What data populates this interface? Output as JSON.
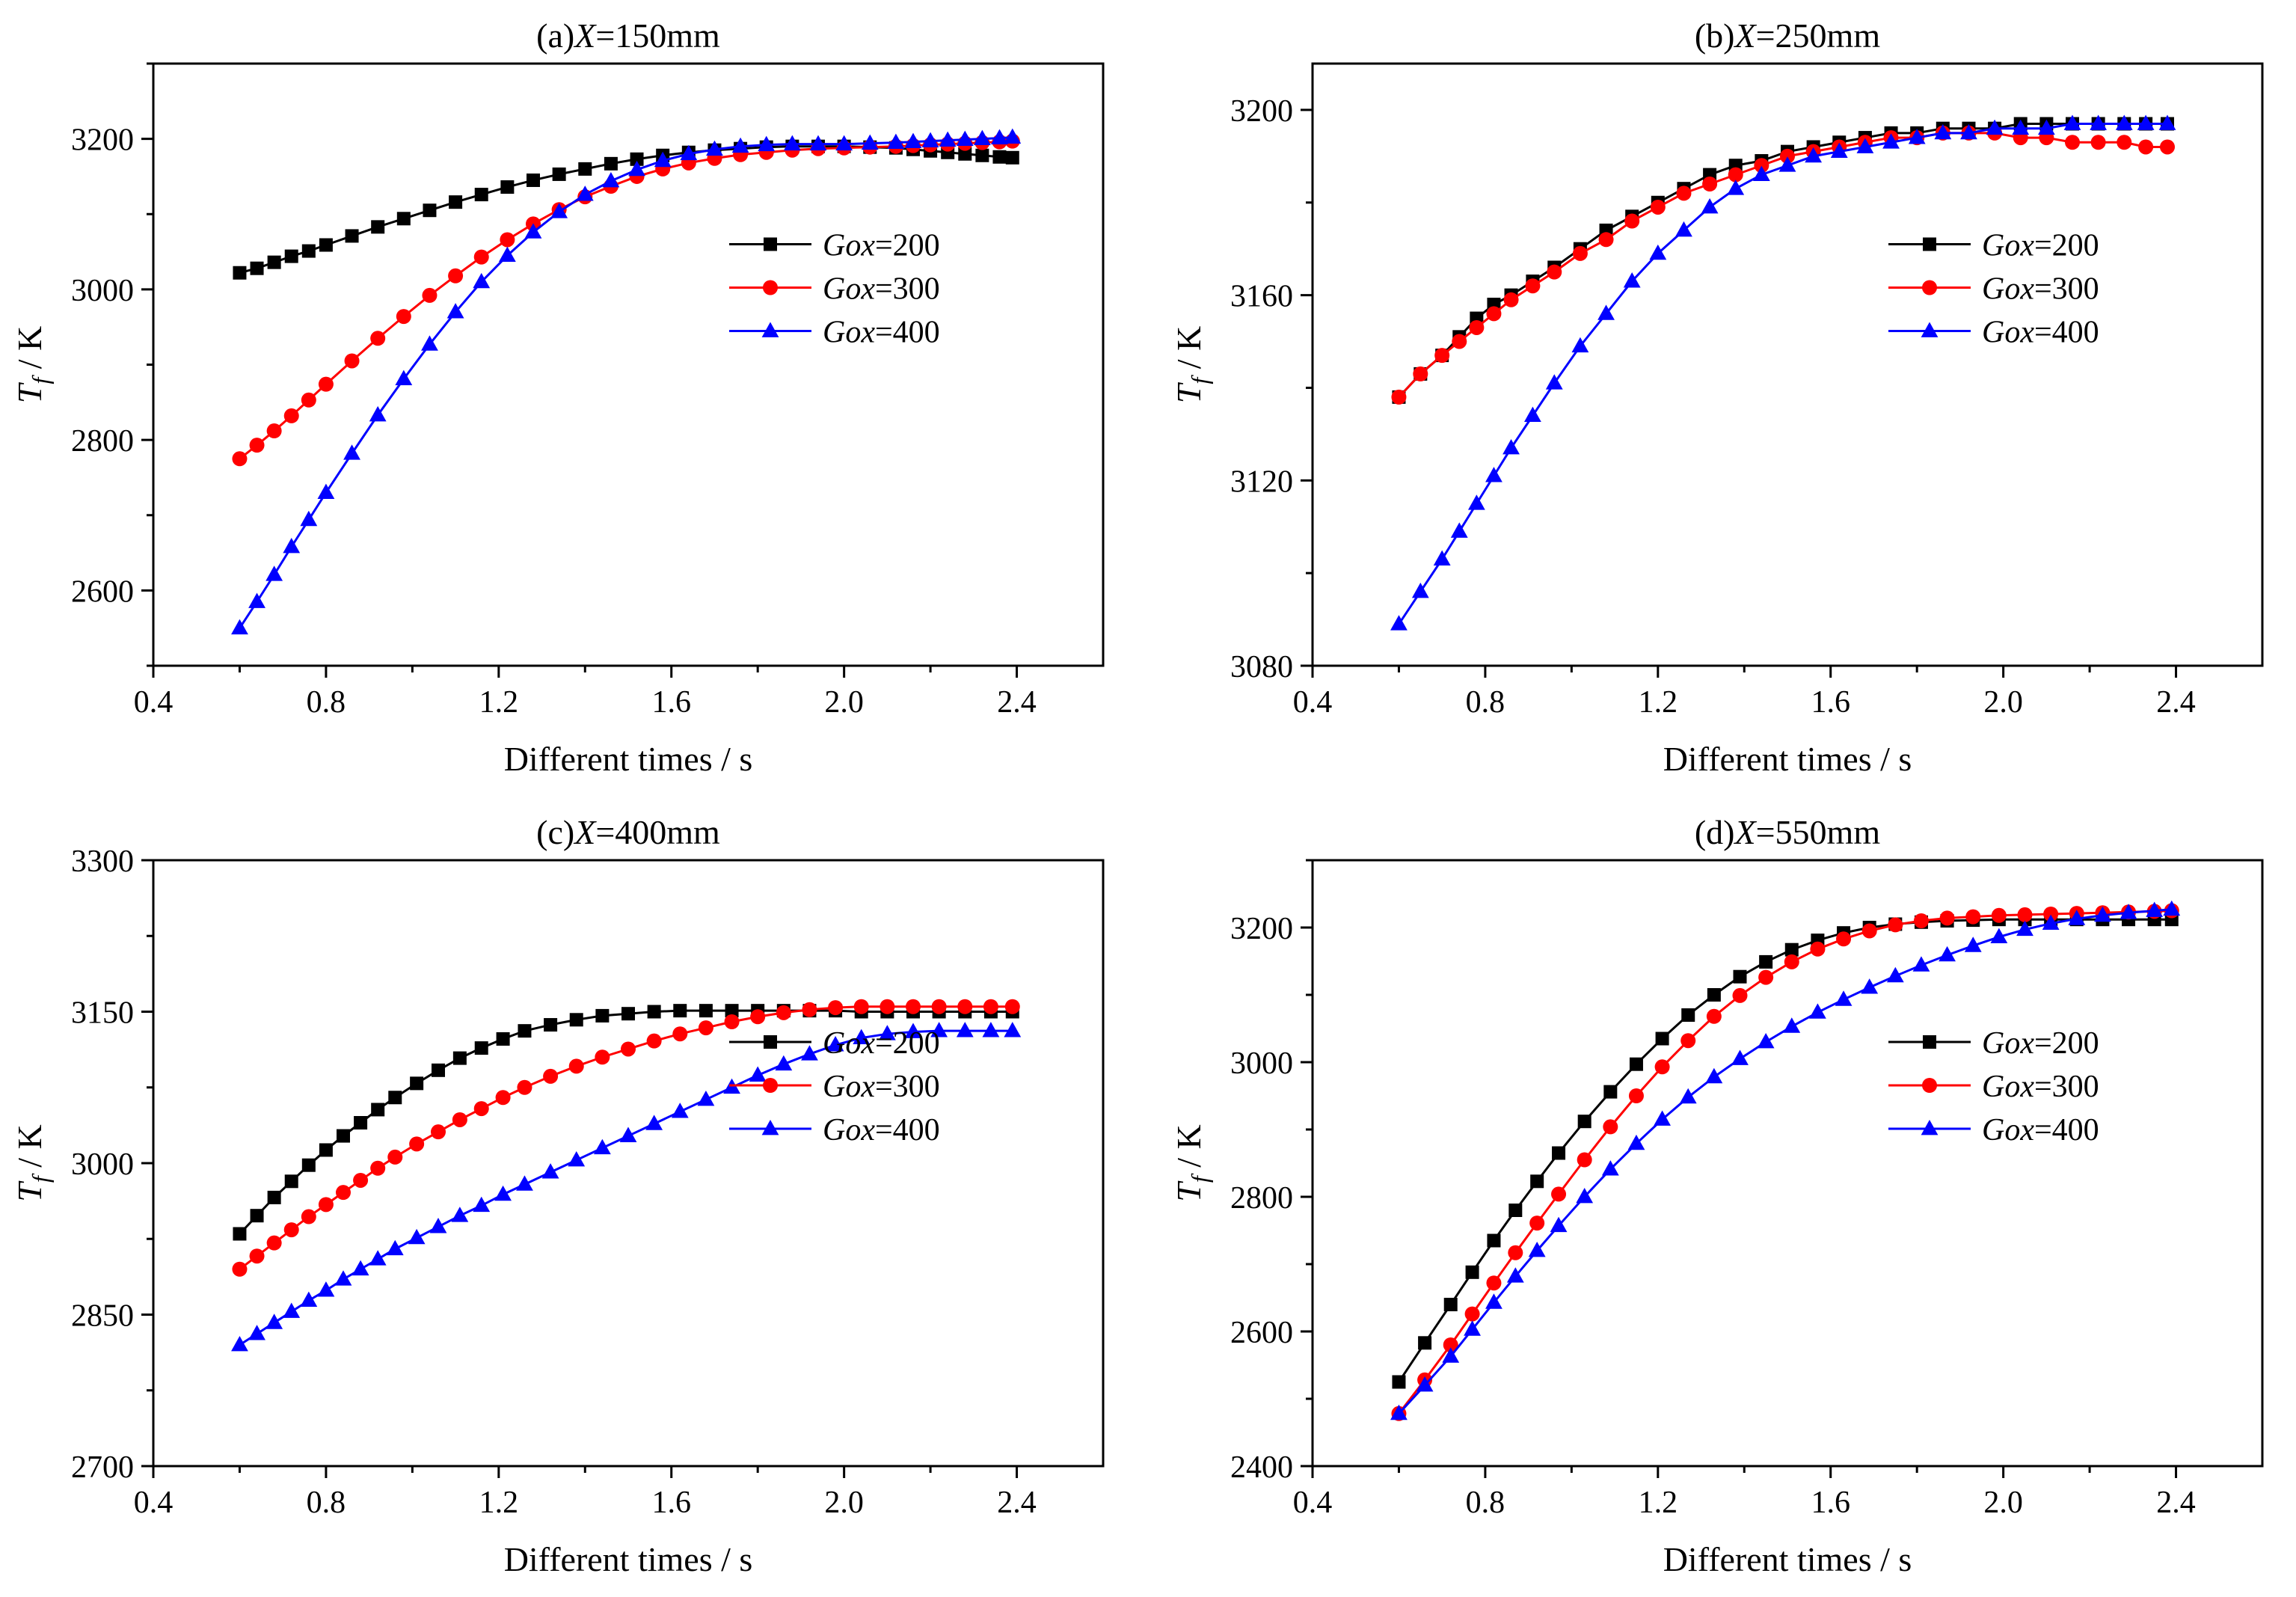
{
  "figure": {
    "colors": {
      "Gox=200": "#000000",
      "Gox=300": "#ff0000",
      "Gox=400": "#0000ff"
    },
    "markers": {
      "Gox=200": "square",
      "Gox=300": "circle",
      "Gox=400": "triangle"
    }
  },
  "chart_data": [
    {
      "type": "line",
      "title": {
        "prefix": "(a)",
        "var": "X",
        "suffix": "=150mm"
      },
      "xlabel": "Different times / s",
      "ylabel": {
        "var": "T",
        "sub": "f",
        "unit": " / K"
      },
      "xlim": [
        0.4,
        2.6
      ],
      "ylim": [
        2500,
        3300
      ],
      "xticks": [
        0.4,
        0.8,
        1.2,
        1.6,
        2.0,
        2.4
      ],
      "xtick_labels": [
        "0.4",
        "0.8",
        "1.2",
        "1.6",
        "2.0",
        "2.4"
      ],
      "yticks": [
        2600,
        2800,
        3000,
        3200
      ],
      "ytick_labels": [
        "2600",
        "2800",
        "3000",
        "3200"
      ],
      "legend_position": "center-right",
      "x": [
        0.6,
        0.64,
        0.68,
        0.72,
        0.76,
        0.8,
        0.86,
        0.92,
        0.98,
        1.04,
        1.1,
        1.16,
        1.22,
        1.28,
        1.34,
        1.4,
        1.46,
        1.52,
        1.58,
        1.64,
        1.7,
        1.76,
        1.82,
        1.88,
        1.94,
        2.0,
        2.06,
        2.12,
        2.16,
        2.2,
        2.24,
        2.28,
        2.32,
        2.36,
        2.39
      ],
      "series": [
        {
          "name": "Gox=200",
          "name_parts": {
            "var": "Gox",
            "suffix": "=200"
          },
          "values": [
            3022,
            3028,
            3036,
            3044,
            3051,
            3059,
            3071,
            3083,
            3094,
            3105,
            3116,
            3126,
            3136,
            3145,
            3153,
            3160,
            3167,
            3173,
            3178,
            3182,
            3185,
            3187,
            3189,
            3190,
            3190,
            3190,
            3189,
            3188,
            3186,
            3184,
            3182,
            3180,
            3178,
            3176,
            3175
          ]
        },
        {
          "name": "Gox=300",
          "name_parts": {
            "var": "Gox",
            "suffix": "=300"
          },
          "values": [
            2775,
            2793,
            2812,
            2832,
            2853,
            2874,
            2905,
            2935,
            2964,
            2992,
            3018,
            3043,
            3066,
            3087,
            3106,
            3123,
            3137,
            3150,
            3160,
            3168,
            3174,
            3179,
            3182,
            3185,
            3187,
            3188,
            3189,
            3190,
            3191,
            3192,
            3193,
            3194,
            3195,
            3196,
            3197
          ]
        },
        {
          "name": "Gox=400",
          "name_parts": {
            "var": "Gox",
            "suffix": "=400"
          },
          "values": [
            2550,
            2585,
            2621,
            2658,
            2694,
            2730,
            2782,
            2833,
            2881,
            2927,
            2970,
            3010,
            3045,
            3076,
            3103,
            3126,
            3144,
            3159,
            3171,
            3180,
            3186,
            3190,
            3192,
            3193,
            3193,
            3193,
            3194,
            3195,
            3196,
            3197,
            3198,
            3199,
            3200,
            3201,
            3202
          ]
        }
      ]
    },
    {
      "type": "line",
      "title": {
        "prefix": "(b)",
        "var": "X",
        "suffix": "=250mm"
      },
      "xlabel": "Different times / s",
      "ylabel": {
        "var": "T",
        "sub": "f",
        "unit": " / K"
      },
      "xlim": [
        0.4,
        2.6
      ],
      "ylim": [
        3080,
        3210
      ],
      "xticks": [
        0.4,
        0.8,
        1.2,
        1.6,
        2.0,
        2.4
      ],
      "xtick_labels": [
        "0.4",
        "0.8",
        "1.2",
        "1.6",
        "2.0",
        "2.4"
      ],
      "yticks": [
        3080,
        3120,
        3160,
        3200
      ],
      "ytick_labels": [
        "3080",
        "3120",
        "3160",
        "3200"
      ],
      "legend_position": "center-right",
      "x": [
        0.6,
        0.65,
        0.7,
        0.74,
        0.78,
        0.82,
        0.86,
        0.91,
        0.96,
        1.02,
        1.08,
        1.14,
        1.2,
        1.26,
        1.32,
        1.38,
        1.44,
        1.5,
        1.56,
        1.62,
        1.68,
        1.74,
        1.8,
        1.86,
        1.92,
        1.98,
        2.04,
        2.1,
        2.16,
        2.22,
        2.28,
        2.33,
        2.38
      ],
      "series": [
        {
          "name": "Gox=200",
          "name_parts": {
            "var": "Gox",
            "suffix": "=200"
          },
          "values": [
            3138,
            3143,
            3147,
            3151,
            3155,
            3158,
            3160,
            3163,
            3166,
            3170,
            3174,
            3177,
            3180,
            3183,
            3186,
            3188,
            3189,
            3191,
            3192,
            3193,
            3194,
            3195,
            3195,
            3196,
            3196,
            3196,
            3197,
            3197,
            3197,
            3197,
            3197,
            3197,
            3197
          ]
        },
        {
          "name": "Gox=300",
          "name_parts": {
            "var": "Gox",
            "suffix": "=300"
          },
          "values": [
            3138,
            3143,
            3147,
            3150,
            3153,
            3156,
            3159,
            3162,
            3165,
            3169,
            3172,
            3176,
            3179,
            3182,
            3184,
            3186,
            3188,
            3190,
            3191,
            3192,
            3193,
            3194,
            3194,
            3195,
            3195,
            3195,
            3194,
            3194,
            3193,
            3193,
            3193,
            3192,
            3192
          ]
        },
        {
          "name": "Gox=400",
          "name_parts": {
            "var": "Gox",
            "suffix": "=400"
          },
          "values": [
            3089,
            3096,
            3103,
            3109,
            3115,
            3121,
            3127,
            3134,
            3141,
            3149,
            3156,
            3163,
            3169,
            3174,
            3179,
            3183,
            3186,
            3188,
            3190,
            3191,
            3192,
            3193,
            3194,
            3195,
            3195,
            3196,
            3196,
            3196,
            3197,
            3197,
            3197,
            3197,
            3197
          ]
        }
      ]
    },
    {
      "type": "line",
      "title": {
        "prefix": "(c)",
        "var": "X",
        "suffix": "=400mm"
      },
      "xlabel": "Different times / s",
      "ylabel": {
        "var": "T",
        "sub": "f",
        "unit": " / K"
      },
      "xlim": [
        0.4,
        2.6
      ],
      "ylim": [
        2700,
        3300
      ],
      "xticks": [
        0.4,
        0.8,
        1.2,
        1.6,
        2.0,
        2.4
      ],
      "xtick_labels": [
        "0.4",
        "0.8",
        "1.2",
        "1.6",
        "2.0",
        "2.4"
      ],
      "yticks": [
        2700,
        2850,
        3000,
        3150,
        3300
      ],
      "ytick_labels": [
        "2700",
        "2850",
        "3000",
        "3150",
        "3300"
      ],
      "legend_position": "center-right",
      "x": [
        0.6,
        0.64,
        0.68,
        0.72,
        0.76,
        0.8,
        0.84,
        0.88,
        0.92,
        0.96,
        1.01,
        1.06,
        1.11,
        1.16,
        1.21,
        1.26,
        1.32,
        1.38,
        1.44,
        1.5,
        1.56,
        1.62,
        1.68,
        1.74,
        1.8,
        1.86,
        1.92,
        1.98,
        2.04,
        2.1,
        2.16,
        2.22,
        2.28,
        2.34,
        2.39
      ],
      "series": [
        {
          "name": "Gox=200",
          "name_parts": {
            "var": "Gox",
            "suffix": "=200"
          },
          "values": [
            2930,
            2948,
            2966,
            2982,
            2998,
            3013,
            3027,
            3040,
            3053,
            3065,
            3079,
            3092,
            3104,
            3114,
            3123,
            3131,
            3137,
            3142,
            3146,
            3148,
            3150,
            3151,
            3151,
            3151,
            3151,
            3151,
            3151,
            3151,
            3150,
            3150,
            3150,
            3150,
            3150,
            3150,
            3150
          ]
        },
        {
          "name": "Gox=300",
          "name_parts": {
            "var": "Gox",
            "suffix": "=300"
          },
          "values": [
            2895,
            2908,
            2921,
            2934,
            2947,
            2959,
            2971,
            2983,
            2995,
            3006,
            3019,
            3031,
            3043,
            3054,
            3065,
            3075,
            3086,
            3096,
            3105,
            3113,
            3121,
            3128,
            3134,
            3140,
            3145,
            3149,
            3152,
            3154,
            3155,
            3155,
            3155,
            3155,
            3155,
            3155,
            3155
          ]
        },
        {
          "name": "Gox=400",
          "name_parts": {
            "var": "Gox",
            "suffix": "=400"
          },
          "values": [
            2820,
            2831,
            2842,
            2853,
            2864,
            2874,
            2885,
            2895,
            2905,
            2915,
            2926,
            2937,
            2948,
            2958,
            2969,
            2979,
            2991,
            3003,
            3015,
            3027,
            3039,
            3051,
            3063,
            3075,
            3087,
            3098,
            3108,
            3117,
            3124,
            3128,
            3130,
            3131,
            3131,
            3131,
            3131
          ]
        }
      ]
    },
    {
      "type": "line",
      "title": {
        "prefix": "(d)",
        "var": "X",
        "suffix": "=550mm"
      },
      "xlabel": "Different times / s",
      "ylabel": {
        "var": "T",
        "sub": "f",
        "unit": " / K"
      },
      "xlim": [
        0.4,
        2.6
      ],
      "ylim": [
        2400,
        3300
      ],
      "xticks": [
        0.4,
        0.8,
        1.2,
        1.6,
        2.0,
        2.4
      ],
      "xtick_labels": [
        "0.4",
        "0.8",
        "1.2",
        "1.6",
        "2.0",
        "2.4"
      ],
      "yticks": [
        2400,
        2600,
        2800,
        3000,
        3200
      ],
      "ytick_labels": [
        "2400",
        "2600",
        "2800",
        "3000",
        "3200"
      ],
      "legend_position": "center-right",
      "x": [
        0.6,
        0.66,
        0.72,
        0.77,
        0.82,
        0.87,
        0.92,
        0.97,
        1.03,
        1.09,
        1.15,
        1.21,
        1.27,
        1.33,
        1.39,
        1.45,
        1.51,
        1.57,
        1.63,
        1.69,
        1.75,
        1.81,
        1.87,
        1.93,
        1.99,
        2.05,
        2.11,
        2.17,
        2.23,
        2.29,
        2.35,
        2.39
      ],
      "series": [
        {
          "name": "Gox=200",
          "name_parts": {
            "var": "Gox",
            "suffix": "=200"
          },
          "values": [
            2525,
            2583,
            2640,
            2688,
            2735,
            2780,
            2823,
            2865,
            2912,
            2956,
            2997,
            3035,
            3070,
            3100,
            3127,
            3149,
            3167,
            3181,
            3192,
            3200,
            3205,
            3208,
            3210,
            3211,
            3212,
            3212,
            3212,
            3212,
            3212,
            3212,
            3212,
            3212
          ]
        },
        {
          "name": "Gox=300",
          "name_parts": {
            "var": "Gox",
            "suffix": "=300"
          },
          "values": [
            2478,
            2528,
            2580,
            2626,
            2672,
            2717,
            2761,
            2804,
            2855,
            2904,
            2950,
            2993,
            3032,
            3068,
            3099,
            3126,
            3149,
            3168,
            3183,
            3195,
            3204,
            3210,
            3214,
            3216,
            3218,
            3219,
            3220,
            3221,
            3222,
            3223,
            3224,
            3225
          ]
        },
        {
          "name": "Gox=400",
          "name_parts": {
            "var": "Gox",
            "suffix": "=400"
          },
          "values": [
            2478,
            2520,
            2563,
            2603,
            2643,
            2682,
            2720,
            2757,
            2800,
            2841,
            2879,
            2915,
            2948,
            2978,
            3005,
            3030,
            3053,
            3074,
            3093,
            3111,
            3128,
            3144,
            3159,
            3173,
            3186,
            3197,
            3206,
            3213,
            3218,
            3222,
            3225,
            3227
          ]
        }
      ]
    }
  ]
}
